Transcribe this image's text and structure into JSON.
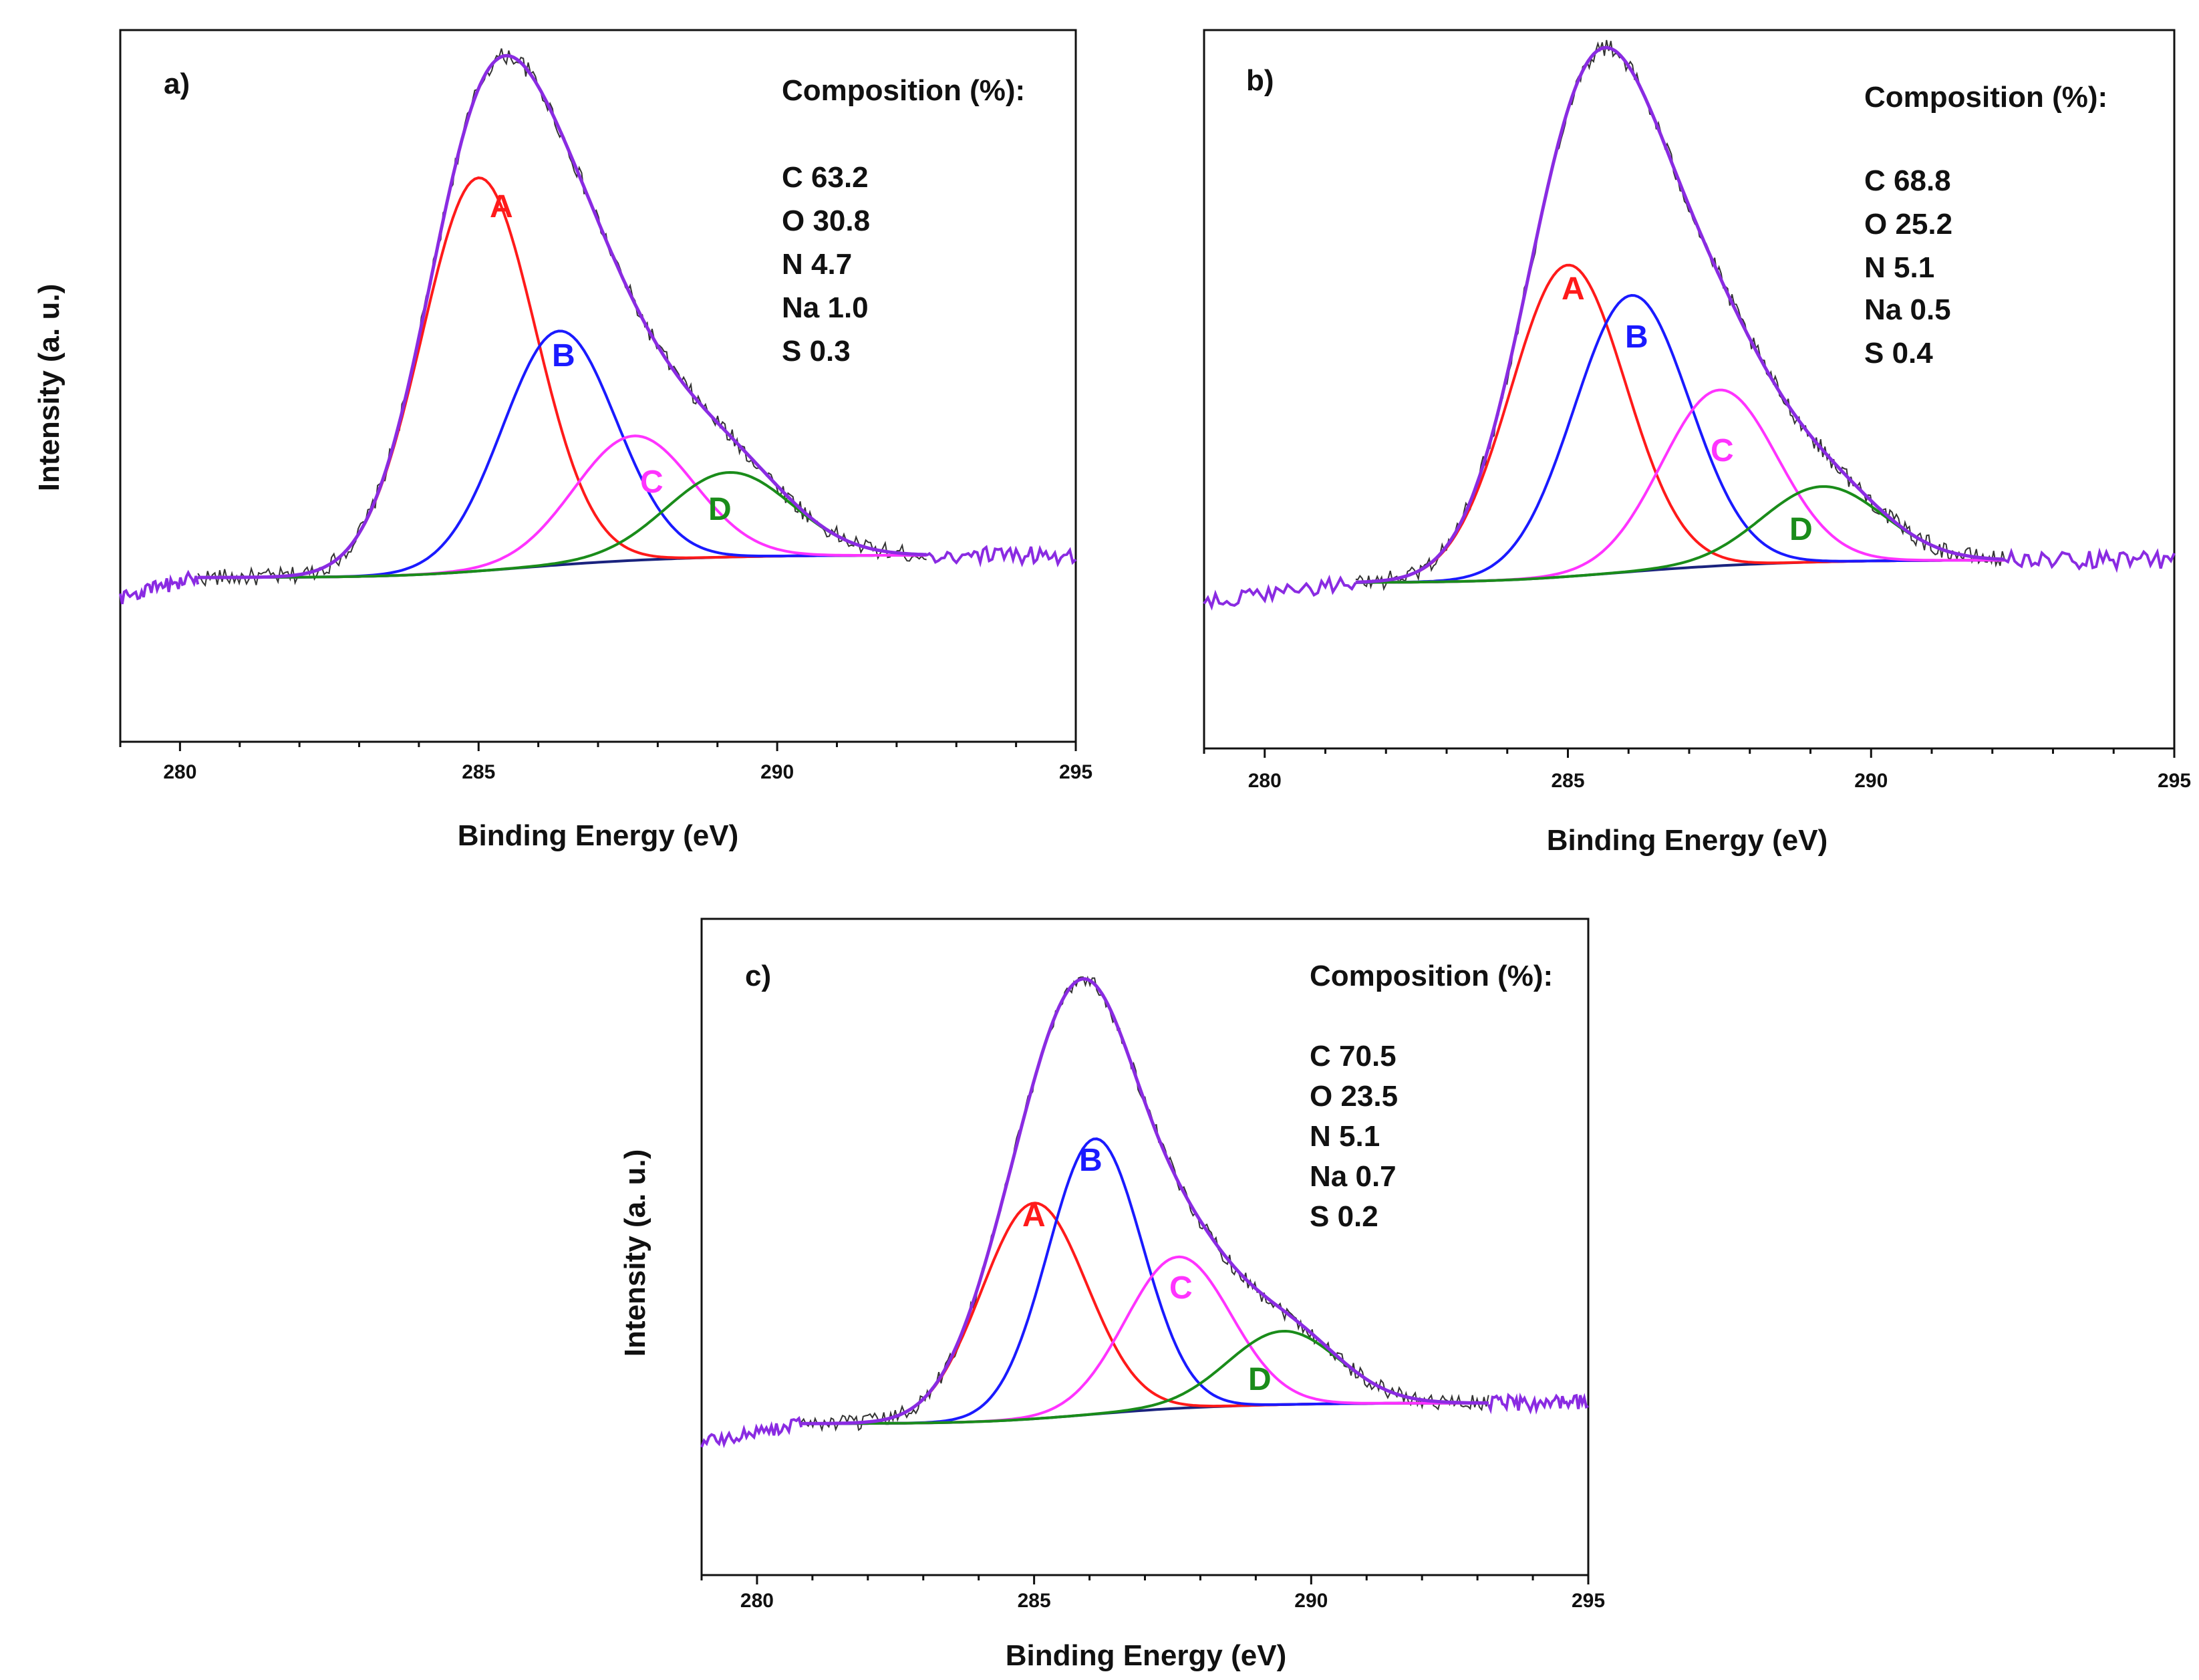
{
  "chart_data": [
    {
      "type": "line",
      "panel_label": "a)",
      "xlabel": "Binding Energy (eV)",
      "ylabel": "Intensity (a. u.)",
      "xlim": [
        279,
        295
      ],
      "ylim": [
        -0.33,
        1.1
      ],
      "x_ticks": [
        280,
        285,
        290,
        295
      ],
      "composition_title": "Composition (%):",
      "composition": [
        "C 63.2",
        "O 30.8",
        "N 4.7",
        "Na 1.0",
        "S 0.3"
      ],
      "components": [
        {
          "name": "A",
          "color": "#ff1a1a",
          "center": 285.0,
          "height": 0.79,
          "sigma": 0.95
        },
        {
          "name": "B",
          "color": "#1a1aff",
          "center": 286.35,
          "height": 0.47,
          "sigma": 0.95
        },
        {
          "name": "C",
          "color": "#ff33ff",
          "center": 287.6,
          "height": 0.25,
          "sigma": 1.0
        },
        {
          "name": "D",
          "color": "#1a8c1a",
          "center": 289.2,
          "height": 0.17,
          "sigma": 1.05
        }
      ],
      "envelope_color": "#8a2be2",
      "baseline_color": "#1a237e"
    },
    {
      "type": "line",
      "panel_label": "b)",
      "xlabel": "Binding Energy (eV)",
      "ylabel": "",
      "xlim": [
        279,
        295
      ],
      "ylim": [
        -0.33,
        1.1
      ],
      "x_ticks": [
        280,
        285,
        290,
        295
      ],
      "composition_title": "Composition (%):",
      "composition": [
        "C 68.8",
        "O 25.2",
        "N 5.1",
        "Na 0.5",
        "S 0.4"
      ],
      "components": [
        {
          "name": "A",
          "color": "#ff1a1a",
          "center": 285.0,
          "height": 0.62,
          "sigma": 0.95
        },
        {
          "name": "B",
          "color": "#1a1aff",
          "center": 286.05,
          "height": 0.55,
          "sigma": 0.95
        },
        {
          "name": "C",
          "color": "#ff33ff",
          "center": 287.5,
          "height": 0.35,
          "sigma": 0.95
        },
        {
          "name": "D",
          "color": "#1a8c1a",
          "center": 289.2,
          "height": 0.15,
          "sigma": 1.0
        }
      ],
      "envelope_color": "#8a2be2",
      "baseline_color": "#1a237e"
    },
    {
      "type": "line",
      "panel_label": "c)",
      "xlabel": "Binding Energy (eV)",
      "ylabel": "Intensity (a. u.)",
      "xlim": [
        279,
        295
      ],
      "ylim": [
        -0.33,
        1.1
      ],
      "x_ticks": [
        280,
        285,
        290,
        295
      ],
      "composition_title": "Composition (%):",
      "composition": [
        "C 70.5",
        "O 23.5",
        "N 5.1",
        "Na 0.7",
        "S 0.2"
      ],
      "components": [
        {
          "name": "A",
          "color": "#ff1a1a",
          "center": 285.0,
          "height": 0.47,
          "sigma": 0.95
        },
        {
          "name": "B",
          "color": "#1a1aff",
          "center": 286.1,
          "height": 0.6,
          "sigma": 0.85
        },
        {
          "name": "C",
          "color": "#ff33ff",
          "center": 287.6,
          "height": 0.33,
          "sigma": 0.95
        },
        {
          "name": "D",
          "color": "#1a8c1a",
          "center": 289.5,
          "height": 0.16,
          "sigma": 1.0
        }
      ],
      "envelope_color": "#8a2be2",
      "baseline_color": "#1a237e"
    }
  ]
}
